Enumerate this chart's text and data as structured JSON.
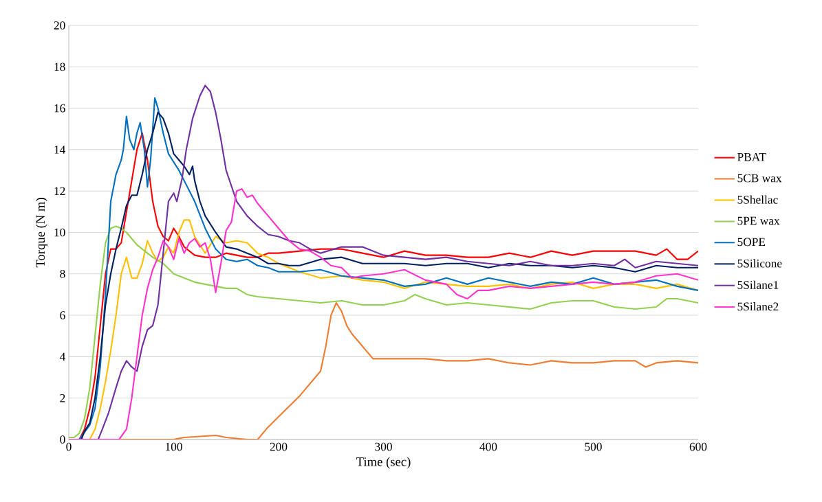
{
  "chart_data": {
    "type": "line",
    "xlabel": "Time (sec)",
    "ylabel": "Torque (N m)",
    "xlim": [
      0,
      600
    ],
    "ylim": [
      0,
      20
    ],
    "xticks": [
      0,
      100,
      200,
      300,
      400,
      500,
      600
    ],
    "yticks": [
      0,
      2,
      4,
      6,
      8,
      10,
      12,
      14,
      16,
      18,
      20
    ],
    "grid": "y",
    "legend": "right",
    "marker": "none",
    "line_style": "solid",
    "series": [
      {
        "name": "PBAT",
        "color": "#ff0000",
        "x": [
          0,
          10,
          15,
          20,
          25,
          30,
          35,
          40,
          45,
          50,
          55,
          60,
          65,
          70,
          75,
          80,
          85,
          90,
          95,
          100,
          105,
          110,
          120,
          130,
          140,
          150,
          160,
          170,
          180,
          190,
          200,
          220,
          240,
          260,
          280,
          300,
          320,
          340,
          360,
          380,
          400,
          420,
          440,
          460,
          480,
          500,
          520,
          540,
          560,
          570,
          580,
          590,
          600
        ],
        "values": [
          0,
          0,
          0.5,
          1.5,
          3,
          5.5,
          8,
          9.2,
          9.2,
          9.5,
          11,
          12.5,
          14,
          14.8,
          13.5,
          11.5,
          10.3,
          9.8,
          9.6,
          10.2,
          9.8,
          9.3,
          8.9,
          8.8,
          8.8,
          9.0,
          8.9,
          8.8,
          8.8,
          9.0,
          9.0,
          9.1,
          9.2,
          9.2,
          9.0,
          8.8,
          9.1,
          8.9,
          8.9,
          8.8,
          8.8,
          9.0,
          8.8,
          9.1,
          8.9,
          9.1,
          9.1,
          9.1,
          8.9,
          9.2,
          8.7,
          8.7,
          9.1
        ]
      },
      {
        "name": "5CB wax",
        "color": "#ed7d31",
        "x": [
          0,
          100,
          110,
          140,
          150,
          170,
          180,
          190,
          200,
          210,
          220,
          230,
          240,
          245,
          250,
          255,
          260,
          265,
          270,
          280,
          290,
          300,
          320,
          340,
          360,
          380,
          400,
          420,
          440,
          460,
          480,
          500,
          520,
          540,
          550,
          560,
          580,
          600
        ],
        "values": [
          0,
          0,
          0.1,
          0.2,
          0.1,
          0,
          0,
          0.6,
          1.1,
          1.6,
          2.1,
          2.7,
          3.3,
          4.5,
          6,
          6.6,
          6.2,
          5.5,
          5.1,
          4.5,
          3.9,
          3.9,
          3.9,
          3.9,
          3.8,
          3.8,
          3.9,
          3.7,
          3.6,
          3.8,
          3.7,
          3.7,
          3.8,
          3.8,
          3.5,
          3.7,
          3.8,
          3.7
        ]
      },
      {
        "name": "5Shellac",
        "color": "#ffc000",
        "x": [
          0,
          20,
          25,
          30,
          35,
          40,
          45,
          50,
          55,
          60,
          65,
          70,
          75,
          80,
          85,
          90,
          95,
          100,
          105,
          110,
          115,
          120,
          125,
          130,
          140,
          150,
          160,
          170,
          180,
          190,
          200,
          220,
          240,
          260,
          280,
          300,
          320,
          340,
          360,
          380,
          400,
          420,
          440,
          460,
          480,
          500,
          520,
          540,
          560,
          580,
          600
        ],
        "values": [
          0,
          0,
          0.5,
          1.5,
          2.8,
          4.3,
          6,
          8,
          8.8,
          7.8,
          7.8,
          8.5,
          9.6,
          9.0,
          8.6,
          8.8,
          9.3,
          9,
          10,
          10.6,
          10.6,
          9.8,
          9.4,
          9.0,
          9.8,
          9.5,
          9.6,
          9.5,
          9.0,
          8.8,
          8.5,
          8.1,
          7.8,
          7.9,
          7.7,
          7.6,
          7.3,
          7.6,
          7.5,
          7.4,
          7.4,
          7.5,
          7.3,
          7.5,
          7.6,
          7.3,
          7.5,
          7.5,
          7.3,
          7.5,
          7.2
        ]
      },
      {
        "name": "5PE wax",
        "color": "#92d050",
        "x": [
          0,
          5,
          10,
          15,
          20,
          25,
          30,
          35,
          40,
          45,
          50,
          55,
          60,
          65,
          70,
          75,
          80,
          90,
          100,
          110,
          120,
          130,
          140,
          150,
          160,
          170,
          180,
          200,
          220,
          240,
          260,
          280,
          300,
          320,
          330,
          340,
          360,
          380,
          400,
          420,
          440,
          460,
          480,
          500,
          520,
          540,
          560,
          570,
          580,
          600
        ],
        "values": [
          0.1,
          0.1,
          0.3,
          1,
          2.5,
          5,
          7.5,
          9.5,
          10.2,
          10.3,
          10.2,
          10,
          9.7,
          9.4,
          9.2,
          9.0,
          8.8,
          8.5,
          8.0,
          7.8,
          7.6,
          7.5,
          7.4,
          7.3,
          7.3,
          7.0,
          6.9,
          6.8,
          6.7,
          6.6,
          6.7,
          6.5,
          6.5,
          6.7,
          7.0,
          6.8,
          6.5,
          6.6,
          6.5,
          6.4,
          6.3,
          6.6,
          6.7,
          6.7,
          6.4,
          6.3,
          6.4,
          6.8,
          6.8,
          6.6
        ]
      },
      {
        "name": "5OPE",
        "color": "#0070c0",
        "x": [
          0,
          10,
          20,
          25,
          30,
          35,
          40,
          45,
          50,
          52,
          55,
          58,
          62,
          65,
          68,
          72,
          75,
          78,
          82,
          85,
          90,
          95,
          100,
          105,
          110,
          120,
          130,
          140,
          150,
          160,
          170,
          180,
          190,
          200,
          220,
          240,
          260,
          280,
          300,
          320,
          340,
          360,
          380,
          400,
          420,
          440,
          460,
          480,
          500,
          520,
          540,
          560,
          580,
          600
        ],
        "values": [
          0,
          0,
          0.7,
          1.5,
          3.5,
          7,
          11.5,
          12.8,
          13.5,
          14,
          15.6,
          14.5,
          14,
          14.8,
          15.3,
          14,
          12.2,
          13.5,
          16.5,
          16,
          14.8,
          13.8,
          13.4,
          13,
          12.5,
          11.5,
          10.2,
          9.2,
          8.7,
          8.6,
          8.7,
          8.4,
          8.3,
          8.1,
          8.1,
          8.2,
          7.9,
          7.8,
          7.7,
          7.4,
          7.5,
          7.8,
          7.5,
          7.8,
          7.6,
          7.4,
          7.6,
          7.5,
          7.8,
          7.5,
          7.6,
          7.7,
          7.4,
          7.2
        ]
      },
      {
        "name": "5Silicone",
        "color": "#002060",
        "x": [
          0,
          12,
          15,
          20,
          25,
          30,
          35,
          40,
          45,
          50,
          55,
          60,
          65,
          70,
          75,
          80,
          85,
          90,
          95,
          100,
          105,
          110,
          115,
          118,
          120,
          125,
          130,
          140,
          150,
          160,
          170,
          180,
          190,
          200,
          210,
          220,
          240,
          260,
          280,
          300,
          320,
          340,
          360,
          380,
          400,
          420,
          440,
          460,
          480,
          500,
          520,
          540,
          560,
          580,
          600
        ],
        "values": [
          0,
          0,
          0.4,
          0.8,
          2,
          4,
          6.5,
          8,
          9.2,
          10.2,
          11.3,
          11.8,
          11.8,
          12.8,
          14,
          14.8,
          15.8,
          15.5,
          14.8,
          13.8,
          13.5,
          13.2,
          12.8,
          13.2,
          12.5,
          11.5,
          10.8,
          10.0,
          9.3,
          9.2,
          9.0,
          8.8,
          8.5,
          8.5,
          8.4,
          8.4,
          8.7,
          8.8,
          8.5,
          8.5,
          8.5,
          8.4,
          8.5,
          8.5,
          8.3,
          8.5,
          8.4,
          8.4,
          8.3,
          8.4,
          8.3,
          8.1,
          8.4,
          8.3,
          8.3
        ]
      },
      {
        "name": "5Silane1",
        "color": "#7030a0",
        "x": [
          0,
          28,
          32,
          38,
          45,
          50,
          55,
          60,
          65,
          70,
          75,
          80,
          85,
          90,
          95,
          100,
          103,
          108,
          112,
          118,
          125,
          130,
          135,
          140,
          145,
          150,
          160,
          170,
          180,
          190,
          200,
          210,
          220,
          230,
          240,
          260,
          280,
          300,
          320,
          340,
          360,
          380,
          400,
          420,
          440,
          460,
          480,
          500,
          520,
          530,
          540,
          560,
          580,
          600
        ],
        "values": [
          0,
          0,
          0.5,
          1.3,
          2.5,
          3.3,
          3.8,
          3.5,
          3.3,
          4.5,
          5.3,
          5.5,
          6.5,
          9,
          11.5,
          11.9,
          11.5,
          12.6,
          14,
          15.5,
          16.6,
          17.1,
          16.8,
          15.8,
          14.5,
          13,
          11.5,
          10.8,
          10.3,
          9.9,
          9.8,
          9.6,
          9.5,
          9.2,
          9.0,
          9.3,
          9.3,
          8.9,
          8.8,
          8.7,
          8.8,
          8.6,
          8.5,
          8.4,
          8.6,
          8.4,
          8.4,
          8.5,
          8.4,
          8.7,
          8.3,
          8.6,
          8.5,
          8.4
        ]
      },
      {
        "name": "5Silane2",
        "color": "#ff33cc",
        "x": [
          0,
          48,
          55,
          60,
          65,
          70,
          75,
          80,
          85,
          90,
          95,
          100,
          105,
          110,
          115,
          120,
          125,
          130,
          135,
          140,
          145,
          150,
          155,
          160,
          165,
          170,
          175,
          180,
          190,
          200,
          210,
          220,
          230,
          240,
          250,
          260,
          270,
          280,
          300,
          320,
          340,
          360,
          370,
          380,
          390,
          400,
          420,
          440,
          460,
          480,
          500,
          520,
          540,
          560,
          580,
          600
        ],
        "values": [
          0,
          0,
          0.5,
          2,
          4,
          6,
          7.3,
          8.2,
          8.8,
          9.6,
          9.3,
          8.7,
          9.7,
          9.0,
          9.5,
          9.7,
          9.3,
          9.5,
          8.7,
          7.1,
          8.5,
          10.1,
          10.5,
          12,
          12.1,
          11.7,
          11.8,
          11.4,
          10.8,
          10.2,
          9.6,
          9.2,
          9.1,
          8.8,
          8.4,
          8.3,
          7.8,
          7.9,
          8.0,
          8.2,
          7.7,
          7.5,
          7.0,
          6.8,
          7.2,
          7.2,
          7.4,
          7.3,
          7.4,
          7.5,
          7.6,
          7.5,
          7.6,
          7.9,
          8.0,
          7.7
        ]
      }
    ]
  }
}
